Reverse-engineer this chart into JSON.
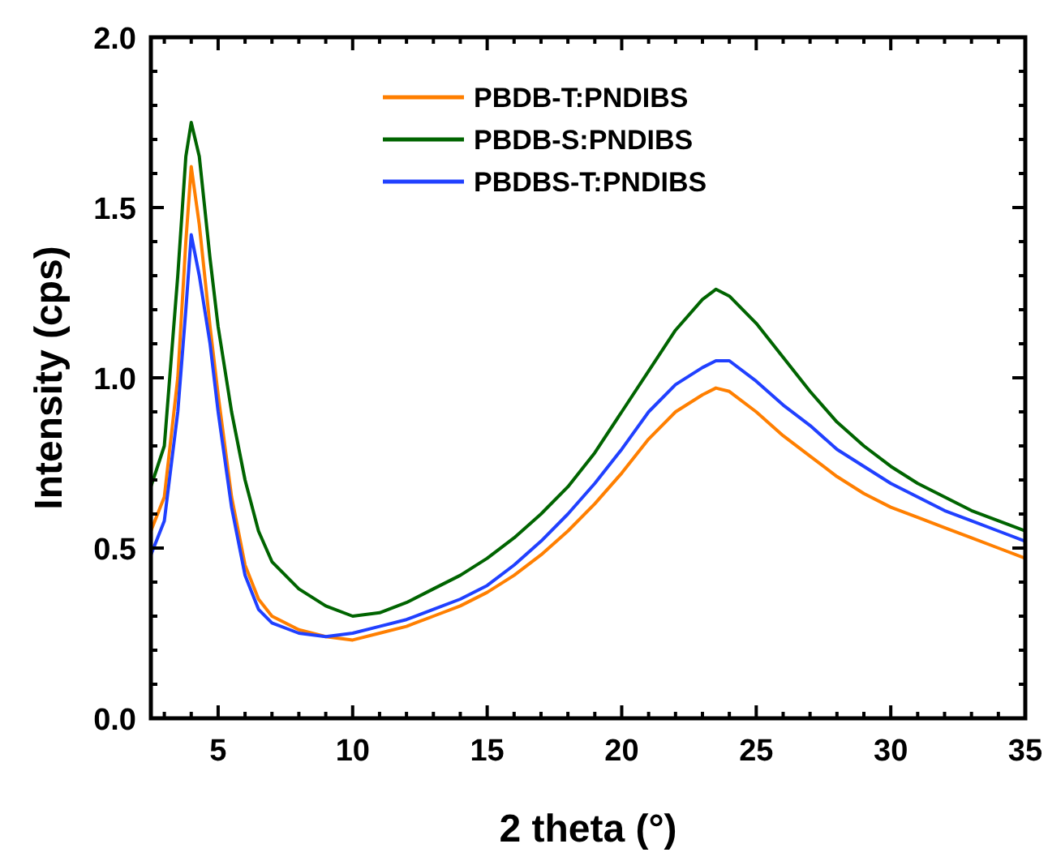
{
  "chart_data": {
    "type": "line",
    "xlabel": "2 theta (°)",
    "ylabel": "Intensity (cps)",
    "xlim": [
      2.5,
      35
    ],
    "ylim": [
      0,
      2.0
    ],
    "xticks": [
      {
        "value": 3,
        "label": null
      },
      {
        "value": 4,
        "label": null
      },
      5,
      {
        "value": 6,
        "label": null
      },
      {
        "value": 7,
        "label": null
      },
      {
        "value": 8,
        "label": null
      },
      {
        "value": 9,
        "label": null
      },
      10,
      {
        "value": 11,
        "label": null
      },
      {
        "value": 12,
        "label": null
      },
      {
        "value": 13,
        "label": null
      },
      {
        "value": 14,
        "label": null
      },
      15,
      {
        "value": 16,
        "label": null
      },
      {
        "value": 17,
        "label": null
      },
      {
        "value": 18,
        "label": null
      },
      {
        "value": 19,
        "label": null
      },
      20,
      {
        "value": 21,
        "label": null
      },
      {
        "value": 22,
        "label": null
      },
      {
        "value": 23,
        "label": null
      },
      {
        "value": 24,
        "label": null
      },
      25,
      {
        "value": 26,
        "label": null
      },
      {
        "value": 27,
        "label": null
      },
      {
        "value": 28,
        "label": null
      },
      {
        "value": 29,
        "label": null
      },
      30,
      {
        "value": 31,
        "label": null
      },
      {
        "value": 32,
        "label": null
      },
      {
        "value": 33,
        "label": null
      },
      {
        "value": 34,
        "label": null
      },
      35
    ],
    "yticks": [
      {
        "value": 0,
        "label": "0.0"
      },
      {
        "value": 0.1,
        "label": null
      },
      {
        "value": 0.2,
        "label": null
      },
      {
        "value": 0.3,
        "label": null
      },
      {
        "value": 0.4,
        "label": null
      },
      0.5,
      {
        "value": 0.6,
        "label": null
      },
      {
        "value": 0.7,
        "label": null
      },
      {
        "value": 0.8,
        "label": null
      },
      {
        "value": 0.9,
        "label": null
      },
      {
        "value": 1,
        "label": "1.0"
      },
      {
        "value": 1.1,
        "label": null
      },
      {
        "value": 1.2,
        "label": null
      },
      {
        "value": 1.3,
        "label": null
      },
      {
        "value": 1.4,
        "label": null
      },
      1.5,
      {
        "value": 1.6,
        "label": null
      },
      {
        "value": 1.7,
        "label": null
      },
      {
        "value": 1.8,
        "label": null
      },
      {
        "value": 1.9,
        "label": null
      },
      {
        "value": 2,
        "label": "2.0"
      }
    ],
    "grid": false,
    "legend": "top",
    "marker": "none",
    "line_style": "solid",
    "x": [
      2.5,
      3,
      3.5,
      3.8,
      4.0,
      4.3,
      4.7,
      5,
      5.5,
      6,
      6.5,
      7,
      8,
      9,
      10,
      11,
      12,
      13,
      14,
      15,
      16,
      17,
      18,
      19,
      20,
      21,
      22,
      23,
      23.5,
      24,
      25,
      26,
      27,
      28,
      29,
      30,
      31,
      32,
      33,
      34,
      35
    ],
    "series": [
      {
        "name": "PBDB-T:PNDIBS",
        "color": "#ff7f00",
        "values": [
          0.55,
          0.65,
          1.0,
          1.4,
          1.62,
          1.45,
          1.15,
          0.95,
          0.65,
          0.45,
          0.35,
          0.3,
          0.26,
          0.24,
          0.23,
          0.25,
          0.27,
          0.3,
          0.33,
          0.37,
          0.42,
          0.48,
          0.55,
          0.63,
          0.72,
          0.82,
          0.9,
          0.95,
          0.97,
          0.96,
          0.9,
          0.83,
          0.77,
          0.71,
          0.66,
          0.62,
          0.59,
          0.56,
          0.53,
          0.5,
          0.47
        ]
      },
      {
        "name": "PBDB-S:PNDIBS",
        "color": "#006400",
        "values": [
          0.68,
          0.8,
          1.3,
          1.65,
          1.75,
          1.65,
          1.35,
          1.15,
          0.9,
          0.7,
          0.55,
          0.46,
          0.38,
          0.33,
          0.3,
          0.31,
          0.34,
          0.38,
          0.42,
          0.47,
          0.53,
          0.6,
          0.68,
          0.78,
          0.9,
          1.02,
          1.14,
          1.23,
          1.26,
          1.24,
          1.16,
          1.06,
          0.96,
          0.87,
          0.8,
          0.74,
          0.69,
          0.65,
          0.61,
          0.58,
          0.55
        ]
      },
      {
        "name": "PBDBS-T:PNDIBS",
        "color": "#2040ff",
        "values": [
          0.48,
          0.58,
          0.9,
          1.2,
          1.42,
          1.3,
          1.1,
          0.9,
          0.62,
          0.42,
          0.32,
          0.28,
          0.25,
          0.24,
          0.25,
          0.27,
          0.29,
          0.32,
          0.35,
          0.39,
          0.45,
          0.52,
          0.6,
          0.69,
          0.79,
          0.9,
          0.98,
          1.03,
          1.05,
          1.05,
          0.99,
          0.92,
          0.86,
          0.79,
          0.74,
          0.69,
          0.65,
          0.61,
          0.58,
          0.55,
          0.52
        ]
      }
    ]
  }
}
